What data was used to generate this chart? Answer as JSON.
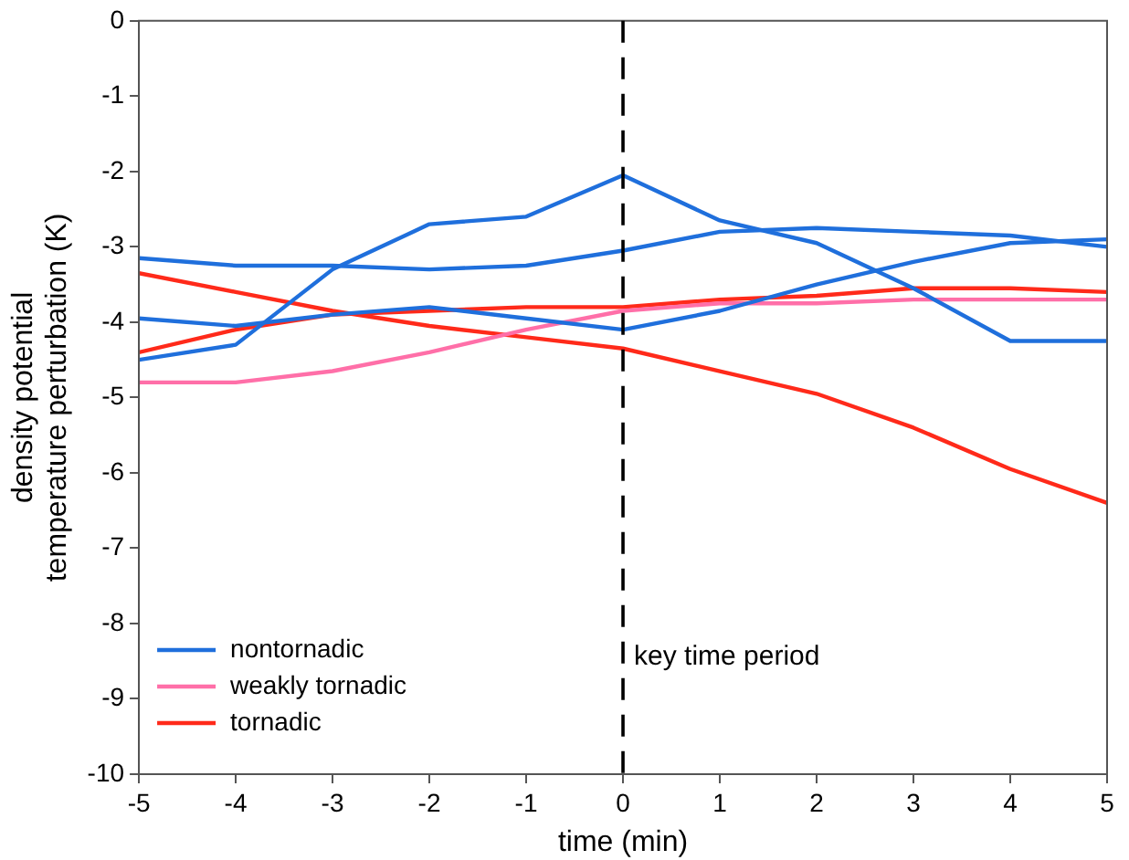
{
  "chart_data": {
    "type": "line",
    "xlabel": "time (min)",
    "ylabel": "density potential\ntemperature perturbation (K)",
    "x": [
      -5,
      -4,
      -3,
      -2,
      -1,
      0,
      1,
      2,
      3,
      4,
      5
    ],
    "xlim": [
      -5,
      5
    ],
    "xticks": [
      -5,
      -4,
      -3,
      -2,
      -1,
      0,
      1,
      2,
      3,
      4,
      5
    ],
    "ylim": [
      -10,
      0
    ],
    "yticks": [
      -10,
      -9,
      -8,
      -7,
      -6,
      -5,
      -4,
      -3,
      -2,
      -1,
      0
    ],
    "grid": false,
    "legend": "bottom left",
    "line_style": "solid",
    "marker": "none",
    "series": [
      {
        "name": "nontornadic",
        "color": "#1f6fdc",
        "values": [
          -3.95,
          -4.05,
          -3.9,
          -3.8,
          -3.95,
          -4.1,
          -3.85,
          -3.5,
          -3.2,
          -2.95,
          -2.9
        ]
      },
      {
        "color": "#1f6fdc",
        "values": [
          -4.5,
          -4.3,
          -3.3,
          -2.7,
          -2.6,
          -2.05,
          -2.65,
          -2.95,
          -3.55,
          -4.25,
          -4.25
        ]
      },
      {
        "color": "#1f6fdc",
        "values": [
          -3.15,
          -3.25,
          -3.25,
          -3.3,
          -3.25,
          -3.05,
          -2.8,
          -2.75,
          -2.8,
          -2.85,
          -3.0
        ]
      },
      {
        "name": "weakly tornadic",
        "color": "#ff6fa8",
        "values": [
          -4.8,
          -4.8,
          -4.65,
          -4.4,
          -4.1,
          -3.85,
          -3.75,
          -3.75,
          -3.7,
          -3.7,
          -3.7
        ]
      },
      {
        "name": "tornadic",
        "color": "#ff2a1a",
        "values": [
          -4.4,
          -4.1,
          -3.9,
          -3.85,
          -3.8,
          -3.8,
          -3.7,
          -3.65,
          -3.55,
          -3.55,
          -3.6
        ]
      },
      {
        "color": "#ff2a1a",
        "values": [
          -3.35,
          -3.6,
          -3.85,
          -4.05,
          -4.2,
          -4.35,
          -4.65,
          -4.95,
          -5.4,
          -5.95,
          -6.4
        ]
      }
    ],
    "ref_lines": [
      {
        "axis": "x",
        "value": 0,
        "label": "key time period",
        "color": "#000000",
        "line_style": "dashed"
      }
    ]
  }
}
